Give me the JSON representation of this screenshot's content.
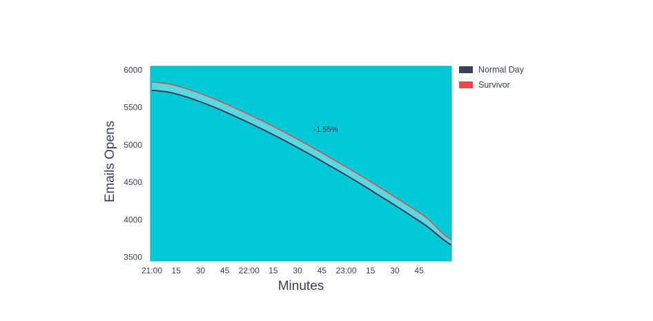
{
  "chart_data": {
    "type": "line",
    "xlabel": "Minutes",
    "ylabel": "Emails Opens",
    "x_tick_labels": [
      "21:00",
      "15",
      "30",
      "45",
      "22:00",
      "15",
      "30",
      "45",
      "23:00",
      "15",
      "30",
      "45"
    ],
    "x_minutes_range": [
      0,
      185
    ],
    "y_ticks": [
      3500,
      4000,
      4500,
      5000,
      5500,
      6000
    ],
    "ylim": [
      3450,
      6050
    ],
    "x": [
      0,
      10,
      20,
      30,
      40,
      50,
      60,
      70,
      80,
      90,
      100,
      110,
      120,
      130,
      140,
      150,
      160,
      170,
      180,
      185
    ],
    "series": [
      {
        "name": "Normal Day",
        "color": "#3b3f5c",
        "values": [
          5730,
          5705,
          5650,
          5575,
          5490,
          5395,
          5295,
          5190,
          5080,
          4965,
          4845,
          4720,
          4595,
          4465,
          4330,
          4195,
          4055,
          3910,
          3735,
          3660
        ]
      },
      {
        "name": "Survivor",
        "color": "#e84a4a",
        "values": [
          5840,
          5815,
          5760,
          5685,
          5600,
          5505,
          5405,
          5300,
          5190,
          5075,
          4955,
          4830,
          4705,
          4575,
          4440,
          4305,
          4165,
          4020,
          3810,
          3730
        ]
      }
    ],
    "annotation": "-1.55%",
    "plot_background": "#00c8d4",
    "band_fill": "#5cd8e0",
    "grid": false,
    "legend_position": "top-right"
  }
}
